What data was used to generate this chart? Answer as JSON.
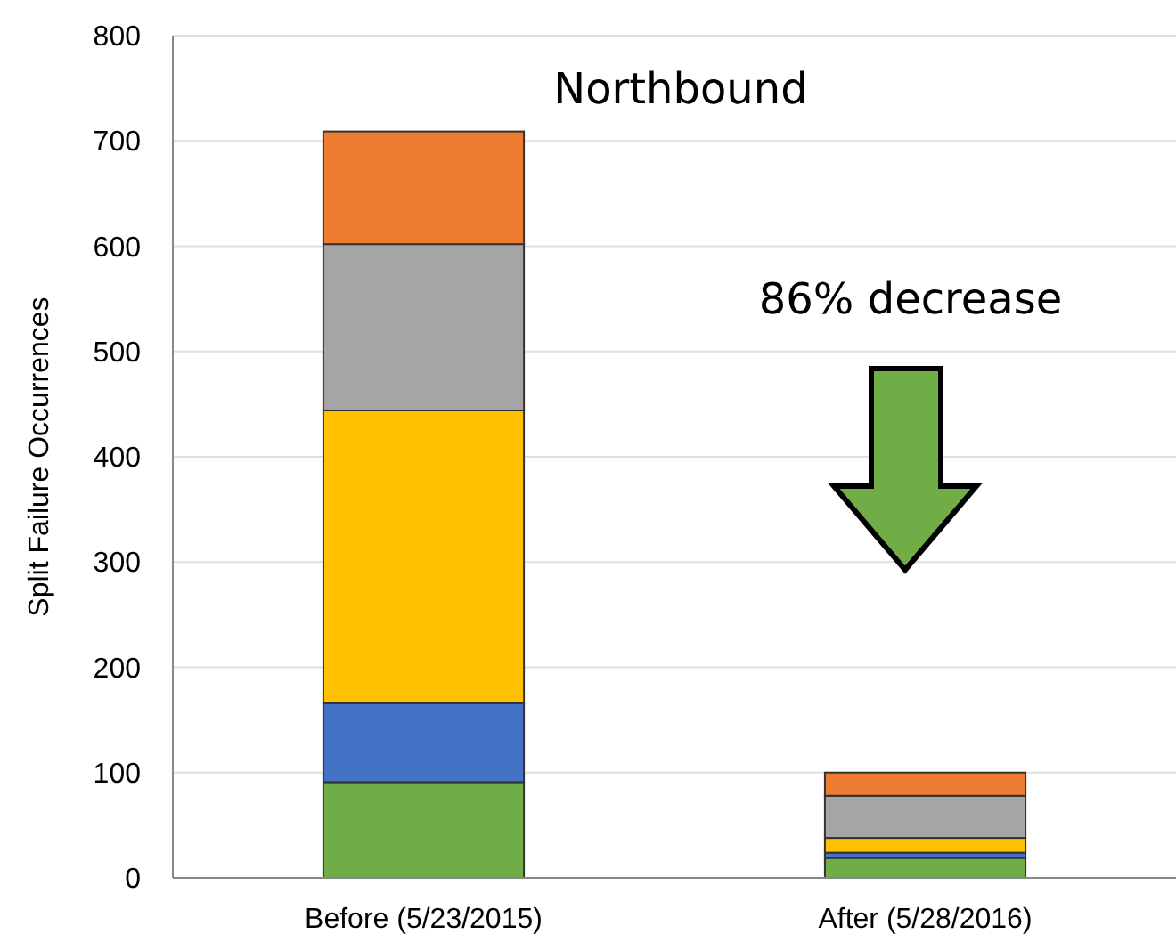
{
  "chart_data": {
    "type": "bar",
    "title": "Northbound",
    "ylabel": "Split Failure Occurrences",
    "annotations": [
      "86% decrease"
    ],
    "categories": [
      "Before (5/23/2015)",
      "After (5/28/2016)"
    ],
    "stacked": true,
    "series": [
      {
        "color": "#70ad47",
        "values": [
          91,
          19
        ]
      },
      {
        "color": "#4472c4",
        "values": [
          75,
          5
        ]
      },
      {
        "color": "#ffc000",
        "values": [
          278,
          14
        ]
      },
      {
        "color": "#a5a5a5",
        "values": [
          158,
          40
        ]
      },
      {
        "color": "#ed7d31",
        "values": [
          107,
          22
        ]
      }
    ],
    "ylim": [
      0,
      800
    ],
    "yticks": [
      0,
      100,
      200,
      300,
      400,
      500,
      600,
      700,
      800
    ],
    "grid": "y"
  }
}
